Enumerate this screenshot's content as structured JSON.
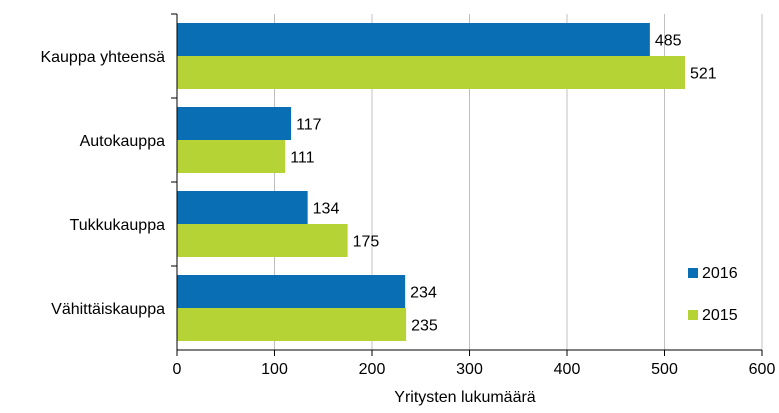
{
  "chart_data": {
    "type": "bar",
    "orientation": "horizontal",
    "categories": [
      "Kauppa yhteensä",
      "Autokauppa",
      "Tukkukauppa",
      "Vähittäiskauppa"
    ],
    "series": [
      {
        "name": "2016",
        "color": "#0a6eb4",
        "values": [
          485,
          117,
          134,
          234
        ]
      },
      {
        "name": "2015",
        "color": "#b5d334",
        "values": [
          521,
          111,
          175,
          235
        ]
      }
    ],
    "xlabel": "Yritysten lukumäärä",
    "xlim": [
      0,
      600
    ],
    "xticks": [
      0,
      100,
      200,
      300,
      400,
      500,
      600
    ],
    "grid": "vertical",
    "legend_position": "bottom-right"
  }
}
